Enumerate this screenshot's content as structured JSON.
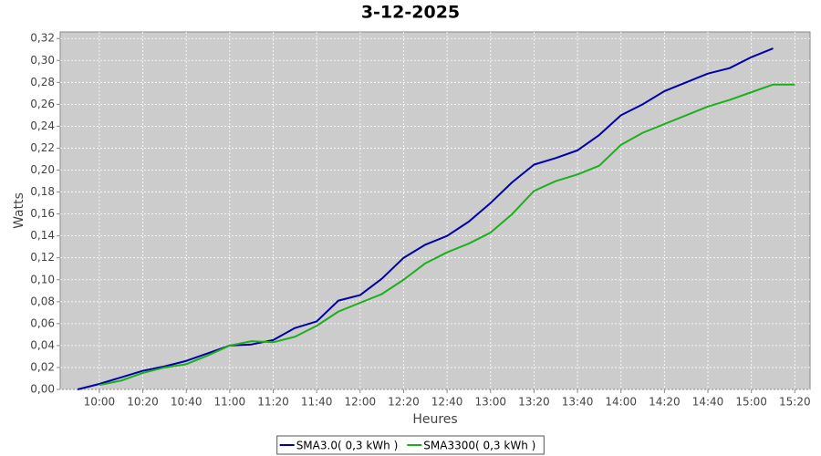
{
  "chart_data": {
    "type": "line",
    "title": "3-12-2025",
    "x_label": "Heures",
    "y_label": "Watts",
    "x": [
      "09:50",
      "10:00",
      "10:10",
      "10:20",
      "10:30",
      "10:40",
      "10:50",
      "11:00",
      "11:10",
      "11:20",
      "11:30",
      "11:40",
      "11:50",
      "12:00",
      "12:10",
      "12:20",
      "12:30",
      "12:40",
      "12:50",
      "13:00",
      "13:10",
      "13:20",
      "13:30",
      "13:40",
      "13:50",
      "14:00",
      "14:10",
      "14:20",
      "14:30",
      "14:40",
      "14:50",
      "15:00",
      "15:10",
      "15:20"
    ],
    "series": [
      {
        "name": "SMA3.0( 0,3 kWh )",
        "color": "#0000a8",
        "values": [
          0.0,
          0.005,
          0.011,
          0.017,
          0.021,
          0.026,
          0.033,
          0.04,
          0.041,
          0.045,
          0.056,
          0.062,
          0.081,
          0.086,
          0.101,
          0.12,
          0.132,
          0.14,
          0.153,
          0.17,
          0.189,
          0.205,
          0.211,
          0.218,
          0.232,
          0.25,
          0.26,
          0.272,
          0.28,
          0.288,
          0.293,
          0.303,
          0.311,
          null
        ]
      },
      {
        "name": "SMA3300( 0,3 kWh )",
        "color": "#1cb01c",
        "values": [
          null,
          0.004,
          0.008,
          0.015,
          0.02,
          0.023,
          0.031,
          0.04,
          0.044,
          0.043,
          0.048,
          0.058,
          0.071,
          0.079,
          0.087,
          0.1,
          0.115,
          0.125,
          0.133,
          0.143,
          0.16,
          0.181,
          0.19,
          0.196,
          0.204,
          0.223,
          0.234,
          0.242,
          0.25,
          0.258,
          0.264,
          0.271,
          0.278,
          0.278
        ]
      }
    ],
    "xlim": [
      "09:42",
      "15:27"
    ],
    "xticks": [
      "10:00",
      "10:20",
      "10:40",
      "11:00",
      "11:20",
      "11:40",
      "12:00",
      "12:20",
      "12:40",
      "13:00",
      "13:20",
      "13:40",
      "14:00",
      "14:20",
      "14:40",
      "15:00",
      "15:20"
    ],
    "ylim": [
      0,
      0.326
    ],
    "yticks": [
      {
        "value": 0,
        "label": "0,00"
      },
      {
        "value": 0.02,
        "label": "0,02"
      },
      {
        "value": 0.04,
        "label": "0,04"
      },
      {
        "value": 0.06,
        "label": "0,06"
      },
      {
        "value": 0.08,
        "label": "0,08"
      },
      {
        "value": 0.1,
        "label": "0,10"
      },
      {
        "value": 0.12,
        "label": "0,12"
      },
      {
        "value": 0.14,
        "label": "0,14"
      },
      {
        "value": 0.16,
        "label": "0,16"
      },
      {
        "value": 0.18,
        "label": "0,18"
      },
      {
        "value": 0.2,
        "label": "0,20"
      },
      {
        "value": 0.22,
        "label": "0,22"
      },
      {
        "value": 0.24,
        "label": "0,24"
      },
      {
        "value": 0.26,
        "label": "0,26"
      },
      {
        "value": 0.28,
        "label": "0,28"
      },
      {
        "value": 0.3,
        "label": "0,30"
      },
      {
        "value": 0.32,
        "label": "0,32"
      }
    ],
    "grid": true,
    "legend": "bottom"
  }
}
